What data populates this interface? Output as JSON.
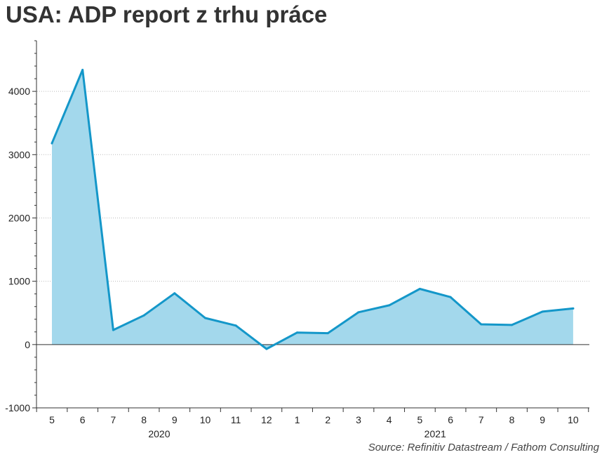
{
  "title": "USA: ADP report z trhu práce",
  "source": "Source: Refinitiv Datastream / Fathom Consulting",
  "colors": {
    "line": "#1497c9",
    "area": "#a3d8ec",
    "title": "#333333",
    "grid": "#bbbbbb"
  },
  "chart_data": {
    "type": "area",
    "title": "USA: ADP report z trhu práce",
    "categories": [
      "5",
      "6",
      "7",
      "8",
      "9",
      "10",
      "11",
      "12",
      "1",
      "2",
      "3",
      "4",
      "5",
      "6",
      "7",
      "8",
      "9",
      "10"
    ],
    "year_groups": [
      {
        "label": "2020",
        "start": 0,
        "end": 7
      },
      {
        "label": "2021",
        "start": 8,
        "end": 17
      }
    ],
    "series": [
      {
        "values": [
          3180,
          4340,
          230,
          460,
          810,
          420,
          300,
          -70,
          190,
          180,
          510,
          620,
          880,
          750,
          320,
          310,
          520,
          570
        ]
      }
    ],
    "ylim": [
      -1000,
      4800
    ],
    "yticks": [
      -1000,
      0,
      1000,
      2000,
      3000,
      4000
    ],
    "ytick_labels": [
      "-1000",
      "0",
      "1000",
      "2000",
      "3000",
      "4000"
    ],
    "grid": "horizontal dotted",
    "legend": "none",
    "source": "Source: Refinitiv Datastream / Fathom Consulting"
  }
}
